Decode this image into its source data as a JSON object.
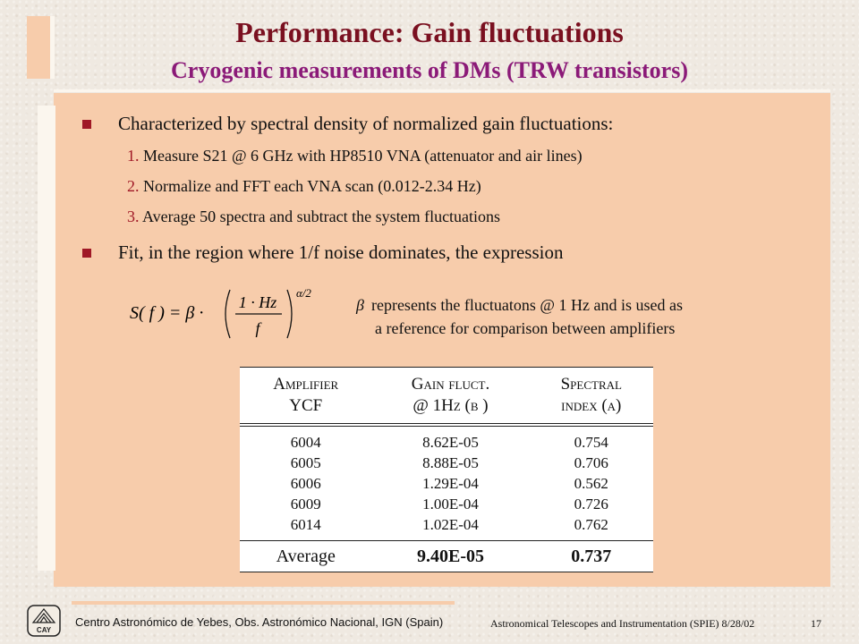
{
  "slide": {
    "title": "Performance:  Gain fluctuations",
    "subtitle": "Cryogenic measurements of DMs (TRW transistors)"
  },
  "bullets": [
    {
      "text": "Characterized by spectral density of normalized gain fluctuations:",
      "steps": [
        {
          "num": "1.",
          "text": "Measure S21 @ 6 GHz with HP8510 VNA (attenuator and air lines)"
        },
        {
          "num": "2.",
          "text": "Normalize and FFT each VNA scan (0.012-2.34 Hz)"
        },
        {
          "num": "3.",
          "text": "Average 50 spectra and subtract the system fluctuations"
        }
      ]
    },
    {
      "text": "Fit, in the region where 1/f noise dominates, the expression"
    }
  ],
  "formula": {
    "lhs": "S( f ) = β ·",
    "numerator": "1 · Hz",
    "denominator": "f",
    "exponent": "α/2"
  },
  "beta_note": {
    "symbol": "β",
    "line1": "represents the fluctuatons @ 1 Hz and is used as",
    "line2": "a reference for comparison between amplifiers"
  },
  "table": {
    "headers": [
      {
        "line1": "Amplifier",
        "line2": "YCF"
      },
      {
        "line1": "Gain fluct.",
        "line2": "@ 1Hz (β )"
      },
      {
        "line1": "Spectral",
        "line2": "index (α)"
      }
    ],
    "rows": [
      {
        "ycf": "6004",
        "gain": "8.62E-05",
        "index": "0.754"
      },
      {
        "ycf": "6005",
        "gain": "8.88E-05",
        "index": "0.706"
      },
      {
        "ycf": "6006",
        "gain": "1.29E-04",
        "index": "0.562"
      },
      {
        "ycf": "6009",
        "gain": "1.00E-04",
        "index": "0.726"
      },
      {
        "ycf": "6014",
        "gain": "1.02E-04",
        "index": "0.762"
      }
    ],
    "average": {
      "label": "Average",
      "gain": "9.40E-05",
      "index": "0.737"
    }
  },
  "footer": {
    "logo_text": "CAY",
    "left": "Centro Astronómico de Yebes, Obs. Astronómico Nacional, IGN (Spain)",
    "right": "Astronomical Telescopes and Instrumentation (SPIE)  8/28/02",
    "page": "17"
  },
  "colors": {
    "title": "#7a1020",
    "subtitle": "#8b1a78",
    "panel": "#f7ccab",
    "bullet": "#a01826"
  }
}
